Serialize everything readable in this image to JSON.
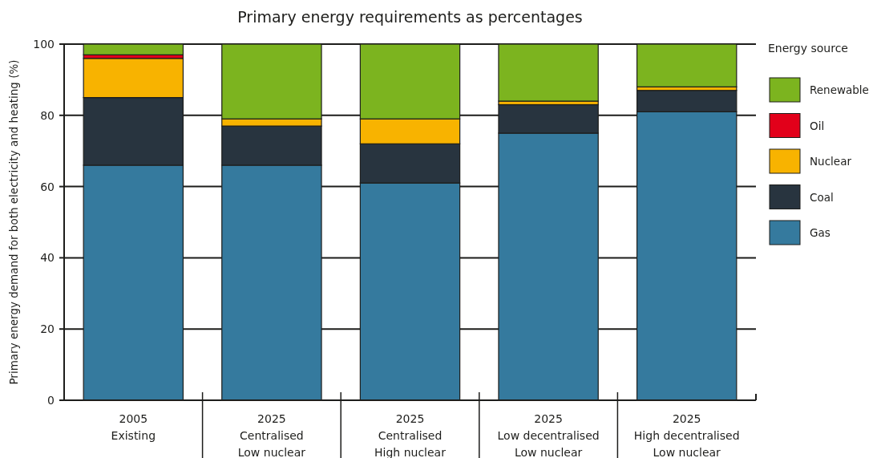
{
  "chart_data": {
    "type": "bar",
    "title": "Primary energy requirements as percentages",
    "ylabel": "Primary energy demand for both electricity and heating (%)",
    "legend_title": "Energy source",
    "categories": [
      "2005\nExisting",
      "2025\nCentralised\nLow nuclear",
      "2025\nCentralised\nHigh nuclear",
      "2025\nLow decentralised\nLow nuclear",
      "2025\nHigh decentralised\nLow nuclear"
    ],
    "series": [
      {
        "name": "Gas",
        "color": "#357a9e",
        "values": [
          66,
          66,
          61,
          75,
          81
        ]
      },
      {
        "name": "Coal",
        "color": "#28343f",
        "values": [
          19,
          11,
          11,
          8,
          6
        ]
      },
      {
        "name": "Nuclear",
        "color": "#f8b300",
        "values": [
          11,
          2,
          7,
          1,
          1
        ]
      },
      {
        "name": "Oil",
        "color": "#e2001a",
        "values": [
          1,
          0,
          0,
          0,
          0
        ]
      },
      {
        "name": "Renewable",
        "color": "#7cb41f",
        "values": [
          3,
          21,
          21,
          16,
          12
        ]
      }
    ],
    "stacked": true,
    "ylim": [
      0,
      100
    ],
    "yticks": [
      0,
      20,
      40,
      60,
      80,
      100
    ],
    "grid": "y",
    "legend": "right"
  }
}
